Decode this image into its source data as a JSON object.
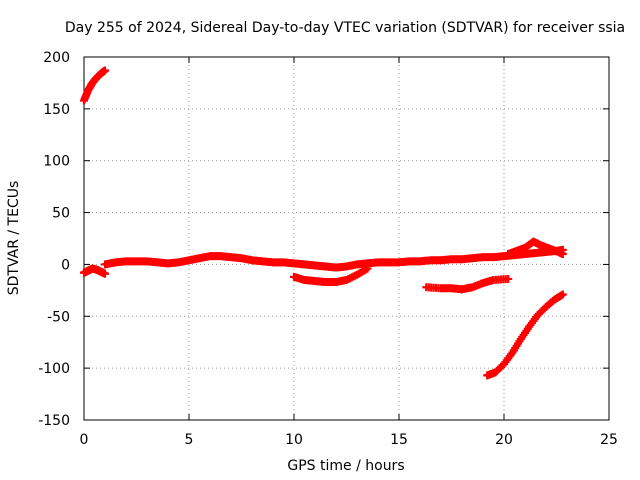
{
  "chart_data": {
    "type": "scatter",
    "title": "Day 255 of 2024, Sidereal Day-to-day VTEC variation (SDTVAR) for receiver ssia",
    "xlabel": "GPS time / hours",
    "ylabel": "SDTVAR / TECUs",
    "xlim": [
      0,
      25
    ],
    "ylim": [
      -150,
      200
    ],
    "xticks": [
      0,
      5,
      10,
      15,
      20,
      25
    ],
    "yticks": [
      -150,
      -100,
      -50,
      0,
      50,
      100,
      150,
      200
    ],
    "grid": true,
    "marker": "plus",
    "color": "#ff0000",
    "series": [
      {
        "x": [
          0.0,
          0.2,
          0.4,
          0.6,
          0.8,
          1.0
        ],
        "y": [
          158,
          168,
          175,
          180,
          184,
          187
        ]
      },
      {
        "x": [
          0.0,
          0.2,
          0.4,
          0.6,
          0.8,
          1.0
        ],
        "y": [
          -8,
          -6,
          -4,
          -5,
          -7,
          -9
        ]
      },
      {
        "x": [
          1.0,
          1.5,
          2.0,
          2.5,
          3.0,
          3.5,
          4.0,
          4.5,
          5.0,
          5.5,
          6.0,
          6.5,
          7.0,
          7.5,
          8.0,
          8.5,
          9.0,
          9.5,
          10.0,
          10.5,
          11.0,
          11.5,
          12.0,
          12.5,
          13.0,
          13.5,
          14.0,
          14.5,
          15.0,
          15.5,
          16.0,
          16.5,
          17.0,
          17.5,
          18.0,
          18.5,
          19.0,
          19.5,
          20.0,
          20.5,
          21.0,
          21.5,
          22.0,
          22.5,
          22.8
        ],
        "y": [
          0,
          2,
          3,
          3,
          3,
          2,
          1,
          2,
          4,
          6,
          8,
          8,
          7,
          6,
          4,
          3,
          2,
          2,
          1,
          0,
          -1,
          -2,
          -3,
          -2,
          0,
          1,
          2,
          2,
          2,
          3,
          3,
          4,
          4,
          5,
          5,
          6,
          7,
          7,
          8,
          9,
          10,
          11,
          12,
          13,
          14
        ]
      },
      {
        "x": [
          10.0,
          10.5,
          11.0,
          11.5,
          12.0,
          12.5,
          13.0,
          13.5
        ],
        "y": [
          -12,
          -15,
          -16,
          -17,
          -17,
          -15,
          -10,
          -4
        ]
      },
      {
        "x": [
          16.3,
          17.0,
          17.5,
          18.0,
          18.5,
          19.0,
          19.5,
          20.2
        ],
        "y": [
          -22,
          -23,
          -23,
          -24,
          -22,
          -18,
          -15,
          -14
        ]
      },
      {
        "x": [
          19.2,
          19.6,
          20.0,
          20.4,
          20.8,
          21.2,
          21.6,
          22.0,
          22.4,
          22.8
        ],
        "y": [
          -107,
          -104,
          -96,
          -85,
          -72,
          -60,
          -49,
          -41,
          -34,
          -29
        ]
      },
      {
        "x": [
          20.2,
          20.6,
          21.0,
          21.4,
          21.8,
          22.2,
          22.6,
          22.8
        ],
        "y": [
          10,
          13,
          16,
          22,
          18,
          15,
          12,
          10
        ]
      }
    ]
  }
}
